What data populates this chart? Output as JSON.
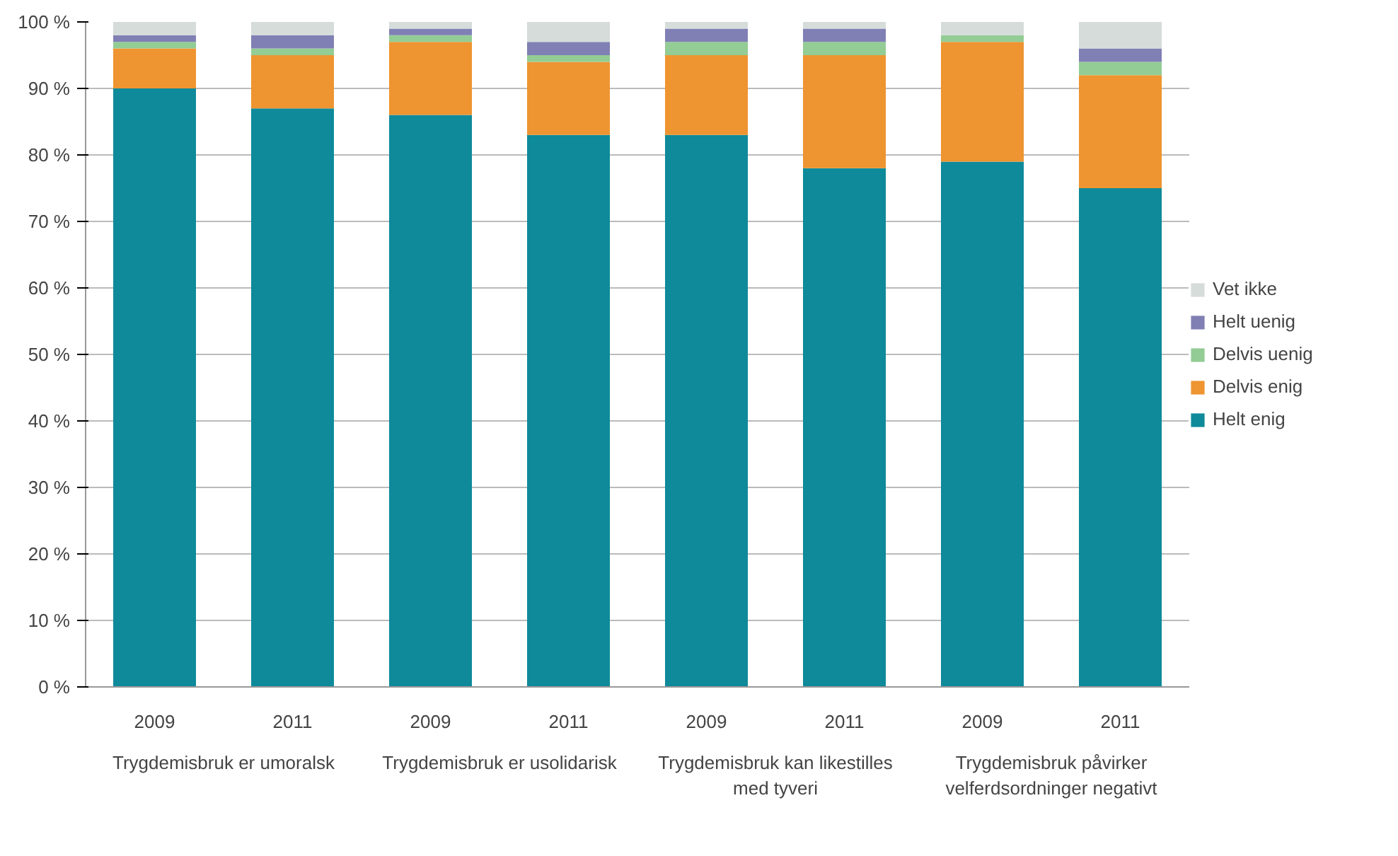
{
  "chart_data": {
    "type": "bar",
    "stacked": true,
    "categories": [
      "2009",
      "2011",
      "2009",
      "2011",
      "2009",
      "2011",
      "2009",
      "2011"
    ],
    "annotations": [
      "Trygdemisbruk er umoralsk",
      "Trygdemisbruk er usolidarisk",
      "Trygdemisbruk kan likestilles med tyveri",
      "Trygdemisbruk påvirker velferdsordninger negativt"
    ],
    "series": [
      {
        "name": "Helt enig",
        "color": "#0e8a9a",
        "values": [
          90,
          87,
          86,
          83,
          83,
          78,
          79,
          75
        ]
      },
      {
        "name": "Delvis enig",
        "color": "#ee9430",
        "values": [
          6,
          8,
          11,
          11,
          12,
          17,
          18,
          17
        ]
      },
      {
        "name": "Delvis uenig",
        "color": "#93cc94",
        "values": [
          1,
          1,
          1,
          1,
          2,
          2,
          1,
          2
        ]
      },
      {
        "name": "Helt uenig",
        "color": "#8080b4",
        "values": [
          1,
          2,
          1,
          2,
          2,
          2,
          0,
          2
        ]
      },
      {
        "name": "Vet ikke",
        "color": "#d5dcda",
        "values": [
          2,
          2,
          1,
          3,
          1,
          1,
          2,
          4
        ]
      }
    ],
    "ylim": [
      0,
      100
    ],
    "yticks": [
      {
        "value": 0,
        "label": "0 %"
      },
      {
        "value": 10,
        "label": "10 %"
      },
      {
        "value": 20,
        "label": "20 %"
      },
      {
        "value": 30,
        "label": "30 %"
      },
      {
        "value": 40,
        "label": "40 %"
      },
      {
        "value": 50,
        "label": "50 %"
      },
      {
        "value": 60,
        "label": "60 %"
      },
      {
        "value": 70,
        "label": "70 %"
      },
      {
        "value": 80,
        "label": "80 %"
      },
      {
        "value": 90,
        "label": "90 %"
      },
      {
        "value": 100,
        "label": "100 %"
      }
    ],
    "grid": "y",
    "legend": "right"
  }
}
